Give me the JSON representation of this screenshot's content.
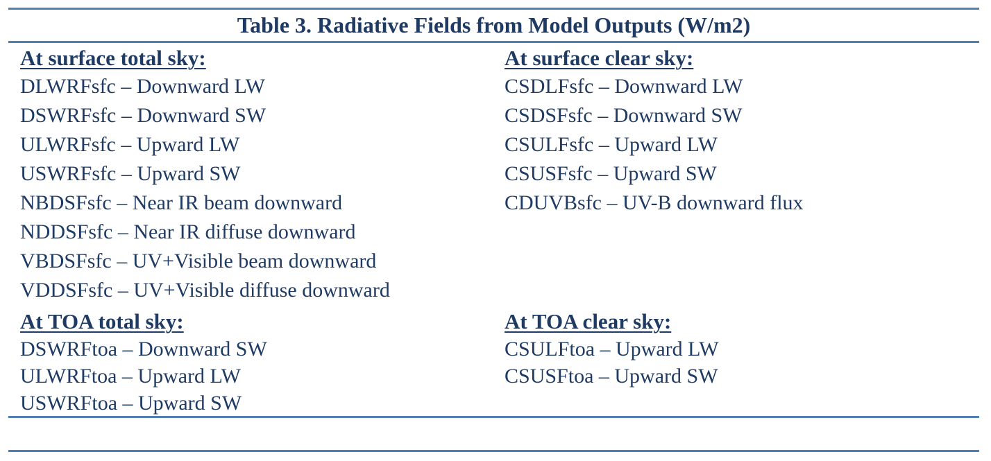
{
  "table": {
    "title": "Table 3. Radiative Fields from Model Outputs (W/m2)",
    "surface_total": {
      "heading": "At surface total sky:",
      "items": [
        "DLWRFsfc – Downward LW",
        "DSWRFsfc – Downward SW",
        "ULWRFsfc – Upward LW",
        "USWRFsfc – Upward SW",
        "NBDSFsfc – Near IR beam downward",
        "NDDSFsfc – Near IR diffuse downward",
        "VBDSFsfc – UV+Visible beam downward",
        "VDDSFsfc – UV+Visible diffuse downward"
      ]
    },
    "surface_clear": {
      "heading": "At surface clear sky:",
      "items": [
        "CSDLFsfc – Downward LW",
        "CSDSFsfc – Downward SW",
        "CSULFsfc – Upward LW",
        "CSUSFsfc – Upward SW",
        "CDUVBsfc – UV-B downward flux"
      ]
    },
    "toa_total": {
      "heading": "At TOA total sky:",
      "items": [
        "DSWRFtoa – Downward SW",
        "ULWRFtoa – Upward LW",
        "USWRFtoa – Upward SW"
      ]
    },
    "toa_clear": {
      "heading": "At TOA clear sky:",
      "items": [
        "CSULFtoa – Upward LW",
        "CSUSFtoa – Upward SW"
      ]
    }
  },
  "colors": {
    "text": "#1f3b63",
    "rule": "#4f7fb5"
  }
}
